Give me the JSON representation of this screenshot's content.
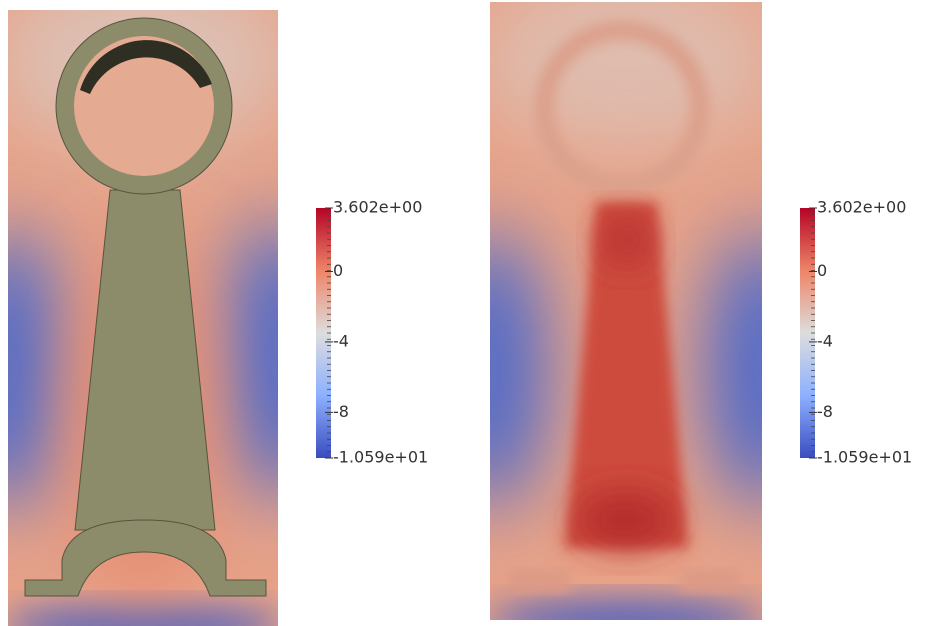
{
  "panels": [
    {
      "colorbar": {
        "max": {
          "value": 3.602,
          "label": "3.602e+00"
        },
        "min": {
          "value": -10.59,
          "label": "-1.059e+01"
        },
        "ticks": [
          0,
          -4,
          -8
        ]
      }
    },
    {
      "colorbar": {
        "max": {
          "value": 3.602,
          "label": "3.602e+00"
        },
        "min": {
          "value": -10.59,
          "label": "-1.059e+01"
        },
        "ticks": [
          0,
          -4,
          -8
        ]
      }
    }
  ]
}
